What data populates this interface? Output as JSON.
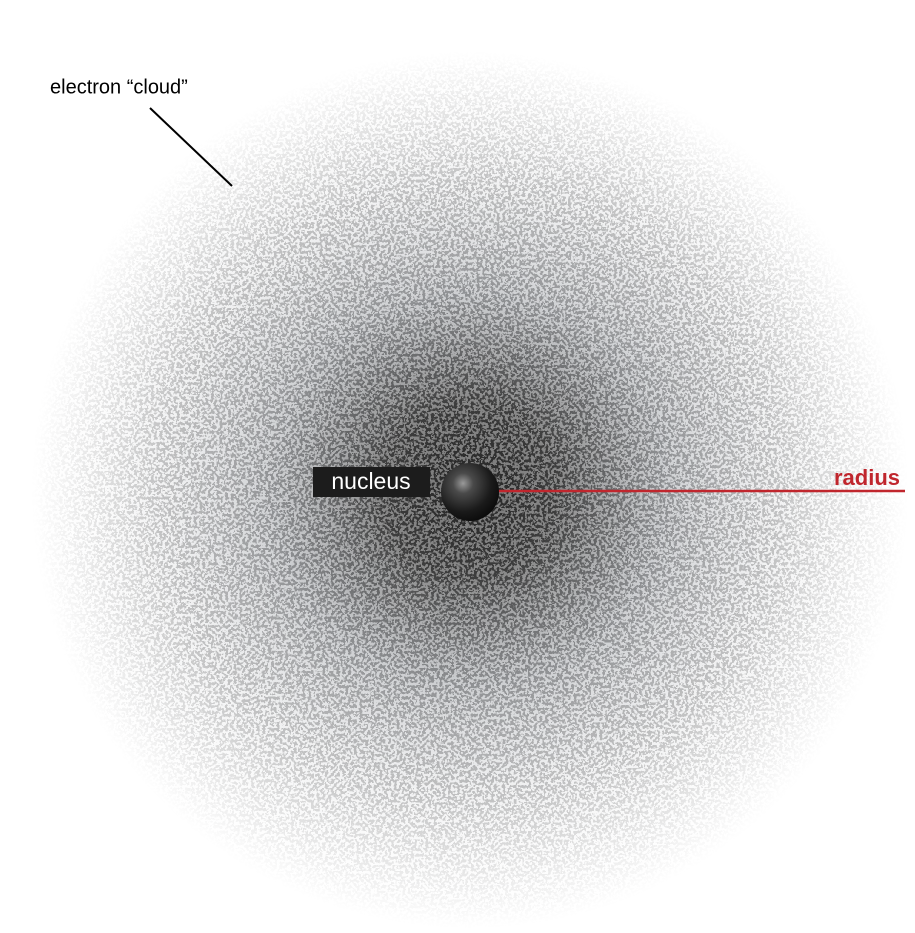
{
  "labels": {
    "cloud": "electron “cloud”",
    "nucleus": "nucleus",
    "radius": "radius"
  }
}
